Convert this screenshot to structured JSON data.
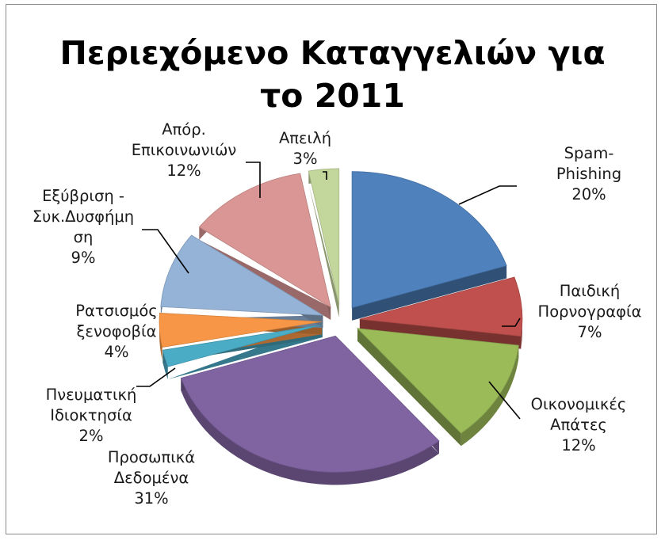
{
  "chart_data": {
    "type": "pie",
    "title": "Περιεχόμενο Καταγγελιών για το 2011",
    "title_lines": [
      "Περιεχόμενο Καταγγελιών για",
      "το 2011"
    ],
    "style": "exploded-3d",
    "slices": [
      {
        "label": "Spam-Phishing",
        "label_lines": [
          "Spam-",
          "Phishing"
        ],
        "value": 20,
        "pct_text": "20%",
        "color": "#4f81bd"
      },
      {
        "label": "Παιδική Πορνογραφία",
        "label_lines": [
          "Παιδική",
          "Πορνογραφία"
        ],
        "value": 7,
        "pct_text": "7%",
        "color": "#c0504d"
      },
      {
        "label": "Οικονομικές Απάτες",
        "label_lines": [
          "Οικονομικές",
          "Απάτες"
        ],
        "value": 12,
        "pct_text": "12%",
        "color": "#9bbb59"
      },
      {
        "label": "Προσωπικά Δεδομένα",
        "label_lines": [
          "Προσωπικά",
          "Δεδομένα"
        ],
        "value": 31,
        "pct_text": "31%",
        "color": "#8064a2"
      },
      {
        "label": "Πνευματική Ιδιοκτησία",
        "label_lines": [
          "Πνευματική",
          "Ιδιοκτησία"
        ],
        "value": 2,
        "pct_text": "2%",
        "color": "#4bacc6"
      },
      {
        "label": "Ρατσισμός ξενοφοβία",
        "label_lines": [
          "Ρατσισμός",
          "ξενοφοβία"
        ],
        "value": 4,
        "pct_text": "4%",
        "color": "#f79646"
      },
      {
        "label": "Εξύβριση - Συκ.Δυσφήμηση",
        "label_lines": [
          "Εξύβριση -",
          "Συκ.Δυσφήμη",
          "ση"
        ],
        "value": 9,
        "pct_text": "9%",
        "color": "#95b3d7"
      },
      {
        "label": "Απόρ. Επικοινωνιών",
        "label_lines": [
          "Απόρ.",
          "Επικοινωνιών"
        ],
        "value": 12,
        "pct_text": "12%",
        "color": "#d99694"
      },
      {
        "label": "Απειλή",
        "label_lines": [
          "Απειλή"
        ],
        "value": 3,
        "pct_text": "3%",
        "color": "#c3d69b"
      }
    ]
  }
}
